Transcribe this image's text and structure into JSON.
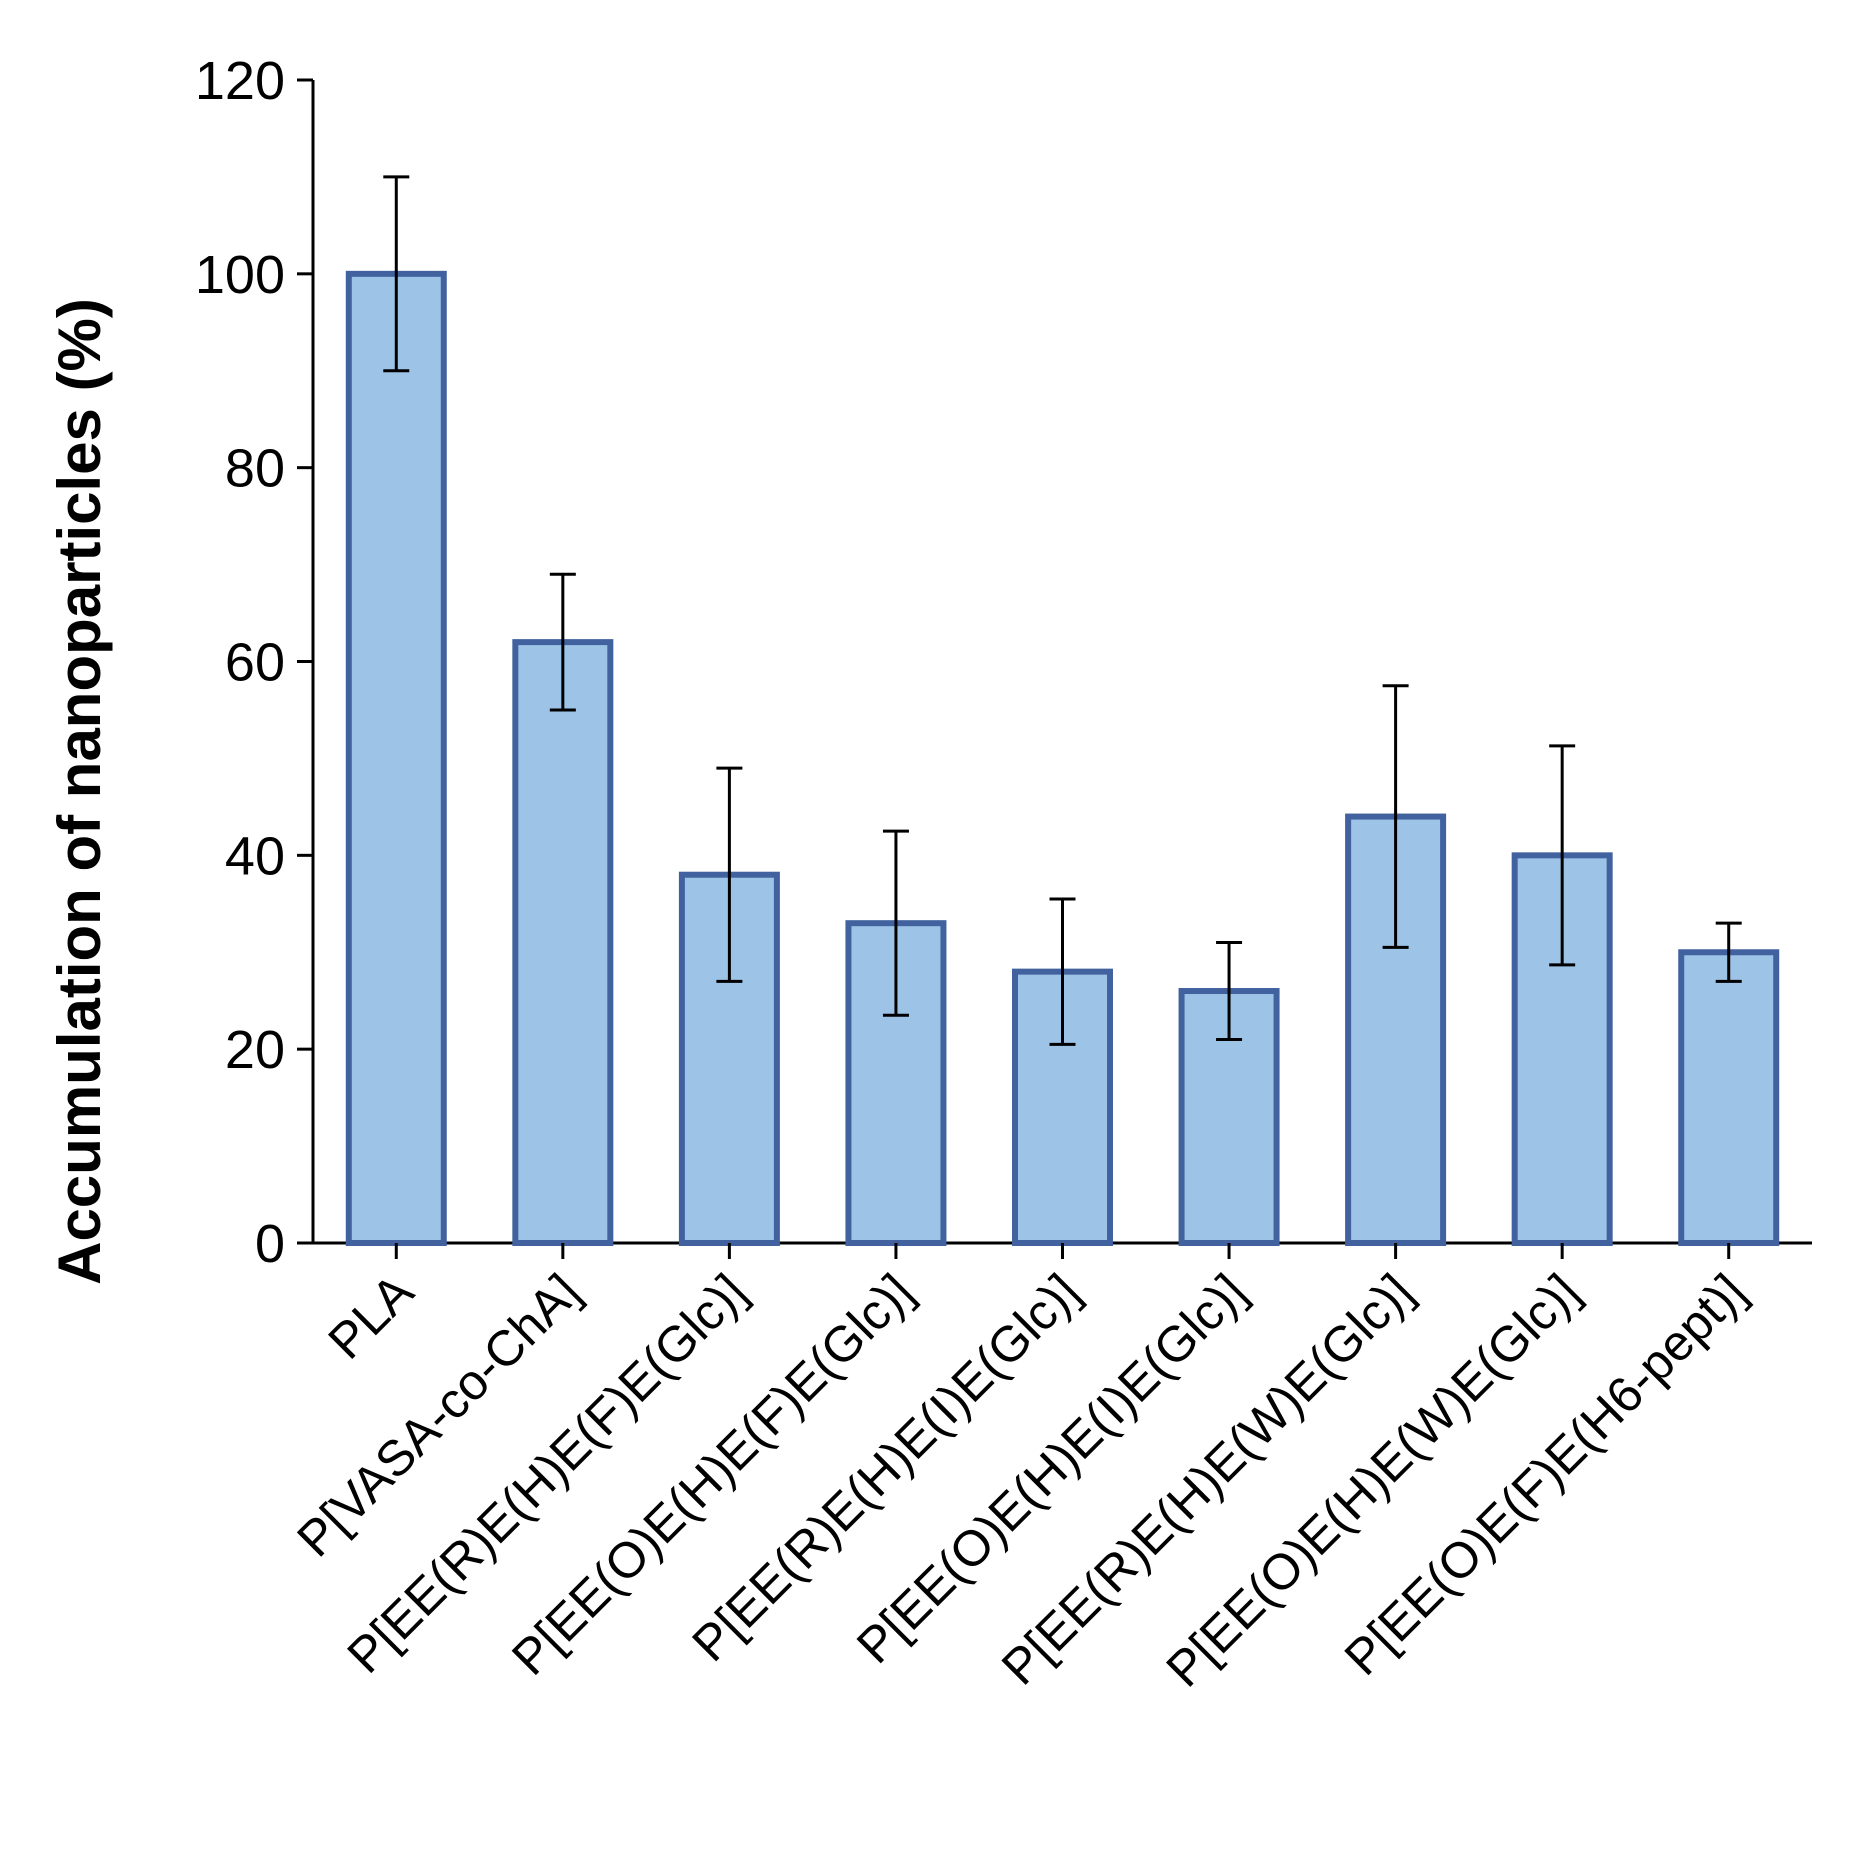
{
  "chart_data": {
    "type": "bar",
    "title": "",
    "xlabel": "",
    "ylabel": "Accumulation of nanoparticles (%)",
    "ylim": [
      0,
      120
    ],
    "yticks": [
      "0",
      "20",
      "40",
      "60",
      "80",
      "100",
      "120"
    ],
    "categories": [
      "PLA",
      "P[VASA-co-ChA]",
      "P[EE(R)E(H)E(F)E(Glc)]",
      "P[EE(O)E(H)E(F)E(Glc)]",
      "P[EE(R)E(H)E(I)E(Glc)]",
      "P[EE(O)E(H)E(I)E(Glc)]",
      "P[EE(R)E(H)E(W)E(Glc)]",
      "P[EE(O)E(H)E(W)E(Glc)]",
      "P[EE(O)E(F)E(H6-pept)]"
    ],
    "values": [
      100,
      62,
      38,
      33,
      28,
      26,
      44,
      40,
      30
    ],
    "errors": [
      10,
      7,
      11,
      9.5,
      7.5,
      5,
      13.5,
      11.3,
      3
    ],
    "bar_color": "#9dc3e6",
    "bar_edge_color": "#41629e"
  }
}
